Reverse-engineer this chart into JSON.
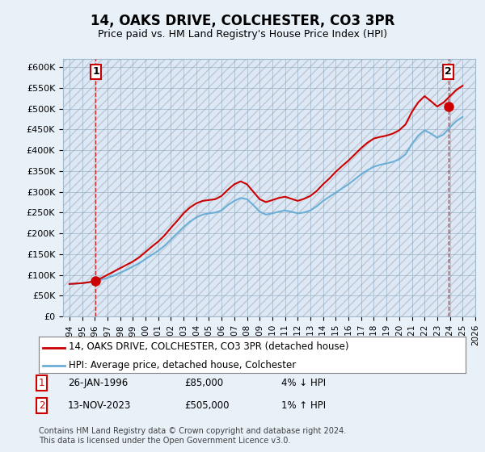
{
  "title": "14, OAKS DRIVE, COLCHESTER, CO3 3PR",
  "subtitle": "Price paid vs. HM Land Registry's House Price Index (HPI)",
  "legend_line1": "14, OAKS DRIVE, COLCHESTER, CO3 3PR (detached house)",
  "legend_line2": "HPI: Average price, detached house, Colchester",
  "footnote": "Contains HM Land Registry data © Crown copyright and database right 2024.\nThis data is licensed under the Open Government Licence v3.0.",
  "transaction1_label": "1",
  "transaction1_date": "26-JAN-1996",
  "transaction1_price": "£85,000",
  "transaction1_hpi": "4% ↓ HPI",
  "transaction2_label": "2",
  "transaction2_date": "13-NOV-2023",
  "transaction2_price": "£505,000",
  "transaction2_hpi": "1% ↑ HPI",
  "hpi_color": "#6baed6",
  "price_color": "#cc0000",
  "background_color": "#e8f0f8",
  "plot_bg_color": "#dce8f5",
  "ylim_min": 0,
  "ylim_max": 620000,
  "yticks": [
    0,
    50000,
    100000,
    150000,
    200000,
    250000,
    300000,
    350000,
    400000,
    450000,
    500000,
    550000,
    600000
  ],
  "ytick_labels": [
    "£0",
    "£50K",
    "£100K",
    "£150K",
    "£200K",
    "£250K",
    "£300K",
    "£350K",
    "£400K",
    "£450K",
    "£500K",
    "£550K",
    "£600K"
  ],
  "transaction1_x": 1996.08,
  "transaction1_y": 85000,
  "transaction2_x": 2023.87,
  "transaction2_y": 505000,
  "hpi_x": [
    1994,
    1994.5,
    1995,
    1995.5,
    1996,
    1996.5,
    1997,
    1997.5,
    1998,
    1998.5,
    1999,
    1999.5,
    2000,
    2000.5,
    2001,
    2001.5,
    2002,
    2002.5,
    2003,
    2003.5,
    2004,
    2004.5,
    2005,
    2005.5,
    2006,
    2006.5,
    2007,
    2007.5,
    2008,
    2008.5,
    2009,
    2009.5,
    2010,
    2010.5,
    2011,
    2011.5,
    2012,
    2012.5,
    2013,
    2013.5,
    2014,
    2014.5,
    2015,
    2015.5,
    2016,
    2016.5,
    2017,
    2017.5,
    2018,
    2018.5,
    2019,
    2019.5,
    2020,
    2020.5,
    2021,
    2021.5,
    2022,
    2022.5,
    2023,
    2023.5,
    2024,
    2024.5,
    2025
  ],
  "hpi_y": [
    78000,
    79000,
    80000,
    82000,
    85000,
    88000,
    93000,
    98000,
    105000,
    112000,
    120000,
    128000,
    138000,
    148000,
    158000,
    170000,
    185000,
    200000,
    215000,
    228000,
    238000,
    245000,
    248000,
    250000,
    255000,
    268000,
    278000,
    285000,
    282000,
    268000,
    252000,
    245000,
    248000,
    252000,
    255000,
    252000,
    248000,
    250000,
    255000,
    265000,
    278000,
    288000,
    298000,
    308000,
    318000,
    330000,
    342000,
    352000,
    360000,
    365000,
    368000,
    372000,
    378000,
    390000,
    415000,
    435000,
    448000,
    440000,
    430000,
    438000,
    455000,
    470000,
    480000
  ],
  "price_x": [
    1994,
    1994.5,
    1995,
    1995.5,
    1996,
    1996.5,
    1997,
    1997.5,
    1998,
    1998.5,
    1999,
    1999.5,
    2000,
    2000.5,
    2001,
    2001.5,
    2002,
    2002.5,
    2003,
    2003.5,
    2004,
    2004.5,
    2005,
    2005.5,
    2006,
    2006.5,
    2007,
    2007.5,
    2008,
    2008.5,
    2009,
    2009.5,
    2010,
    2010.5,
    2011,
    2011.5,
    2012,
    2012.5,
    2013,
    2013.5,
    2014,
    2014.5,
    2015,
    2015.5,
    2016,
    2016.5,
    2017,
    2017.5,
    2018,
    2018.5,
    2019,
    2019.5,
    2020,
    2020.5,
    2021,
    2021.5,
    2022,
    2022.5,
    2023,
    2023.5,
    2024,
    2024.5,
    2025
  ],
  "price_y": [
    78000,
    79000,
    80000,
    82000,
    85000,
    92000,
    100000,
    108000,
    116000,
    124000,
    132000,
    142000,
    155000,
    168000,
    180000,
    195000,
    213000,
    230000,
    248000,
    262000,
    272000,
    278000,
    280000,
    282000,
    290000,
    305000,
    318000,
    325000,
    318000,
    300000,
    282000,
    275000,
    280000,
    285000,
    288000,
    283000,
    278000,
    283000,
    290000,
    302000,
    318000,
    332000,
    348000,
    362000,
    375000,
    390000,
    405000,
    418000,
    428000,
    432000,
    435000,
    440000,
    448000,
    462000,
    492000,
    515000,
    530000,
    518000,
    505000,
    515000,
    530000,
    545000,
    555000
  ],
  "xlim_min": 1993.5,
  "xlim_max": 2026.0,
  "xticks": [
    1994,
    1995,
    1996,
    1997,
    1998,
    1999,
    2000,
    2001,
    2002,
    2003,
    2004,
    2005,
    2006,
    2007,
    2008,
    2009,
    2010,
    2011,
    2012,
    2013,
    2014,
    2015,
    2016,
    2017,
    2018,
    2019,
    2020,
    2021,
    2022,
    2023,
    2024,
    2025,
    2026
  ]
}
